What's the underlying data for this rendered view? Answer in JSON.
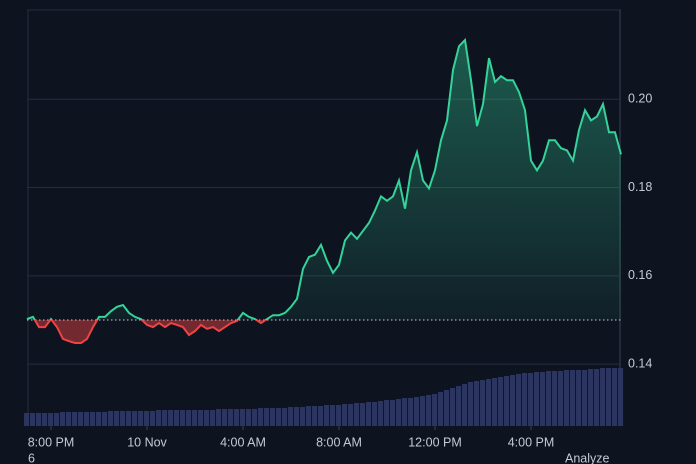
{
  "chart_data": {
    "type": "line",
    "x": [
      19.0,
      19.25,
      19.5,
      19.75,
      20.0,
      20.25,
      20.5,
      20.75,
      21.0,
      21.25,
      21.5,
      21.75,
      22.0,
      22.25,
      22.5,
      22.75,
      23.0,
      23.25,
      23.5,
      23.75,
      24.0,
      24.25,
      24.5,
      24.75,
      25.0,
      25.25,
      25.5,
      25.75,
      26.0,
      26.25,
      26.5,
      26.75,
      27.0,
      27.25,
      27.5,
      27.75,
      28.0,
      28.25,
      28.5,
      28.75,
      29.0,
      29.25,
      29.5,
      29.75,
      30.0,
      30.25,
      30.5,
      30.75,
      31.0,
      31.25,
      31.5,
      31.75,
      32.0,
      32.25,
      32.5,
      32.75,
      33.0,
      33.25,
      33.5,
      33.75,
      34.0,
      34.25,
      34.5,
      34.75,
      35.0,
      35.25,
      35.5,
      35.75,
      36.0,
      36.25,
      36.5,
      36.75,
      37.0,
      37.25,
      37.5,
      37.75,
      38.0,
      38.25,
      38.5,
      38.75,
      39.0,
      39.25,
      39.5,
      39.75,
      40.0,
      40.25,
      40.5,
      40.75,
      41.0,
      41.25,
      41.5,
      41.75,
      42.0,
      42.25,
      42.5,
      42.75,
      43.0,
      43.25,
      43.5,
      43.75
    ],
    "series": [
      {
        "color": "#34d399",
        "values": [
          0.1502,
          0.1507,
          0.1484,
          0.1484,
          0.1502,
          0.1484,
          0.1457,
          0.1452,
          0.1448,
          0.1448,
          0.1457,
          0.1484,
          0.1507,
          0.1507,
          0.152,
          0.153,
          0.1534,
          0.1516,
          0.1507,
          0.1502,
          0.1489,
          0.1484,
          0.1493,
          0.1484,
          0.1493,
          0.1489,
          0.1484,
          0.1466,
          0.1475,
          0.1489,
          0.148,
          0.1484,
          0.1475,
          0.1484,
          0.1493,
          0.1498,
          0.1516,
          0.1507,
          0.1502,
          0.1493,
          0.1502,
          0.1511,
          0.1511,
          0.1516,
          0.153,
          0.1548,
          0.1616,
          0.1643,
          0.1648,
          0.167,
          0.1634,
          0.1607,
          0.1625,
          0.168,
          0.1698,
          0.1684,
          0.1702,
          0.172,
          0.1748,
          0.178,
          0.177,
          0.178,
          0.1816,
          0.1752,
          0.1839,
          0.188,
          0.1816,
          0.1798,
          0.1839,
          0.1907,
          0.1952,
          0.2066,
          0.212,
          0.2134,
          0.2043,
          0.1939,
          0.1989,
          0.2093,
          0.2039,
          0.2052,
          0.2043,
          0.2043,
          0.2016,
          0.1975,
          0.1861,
          0.1839,
          0.1861,
          0.1907,
          0.1907,
          0.1889,
          0.1884,
          0.1861,
          0.193,
          0.1975,
          0.1952,
          0.1961,
          0.1989,
          0.1925,
          0.1925,
          0.1875
        ]
      }
    ],
    "down_color": "#ef4444",
    "baseline": 0.15,
    "volume": [
      13,
      13,
      13,
      13,
      13,
      13,
      14,
      14,
      14,
      14,
      14,
      14,
      14,
      14,
      15,
      15,
      15,
      15,
      15,
      15,
      15,
      15,
      16,
      16,
      16,
      16,
      16,
      16,
      16,
      16,
      16,
      16,
      17,
      17,
      17,
      17,
      17,
      17,
      17,
      18,
      18,
      18,
      18,
      18,
      19,
      19,
      19,
      20,
      20,
      20,
      21,
      21,
      21,
      22,
      22,
      23,
      23,
      24,
      24,
      25,
      26,
      26,
      27,
      28,
      28,
      29,
      30,
      31,
      32,
      34,
      36,
      38,
      40,
      42,
      44,
      45,
      46,
      47,
      48,
      49,
      50,
      51,
      52,
      53,
      53,
      54,
      54,
      55,
      55,
      55,
      56,
      56,
      56,
      56,
      57,
      57,
      58,
      58,
      58,
      58
    ],
    "volume_color": "#2b3560",
    "xlim": [
      19.0,
      43.75
    ],
    "xticks": [
      {
        "value": 20,
        "label": "8:00 PM"
      },
      {
        "value": 24,
        "label": "10 Nov"
      },
      {
        "value": 28,
        "label": "4:00 AM"
      },
      {
        "value": 32,
        "label": "8:00 AM"
      },
      {
        "value": 36,
        "label": "12:00 PM"
      },
      {
        "value": 40,
        "label": "4:00 PM"
      }
    ],
    "ylim": [
      0.126,
      0.2202
    ],
    "yticks": [
      0.14,
      0.16,
      0.18,
      {
        "value": 0.2,
        "label": "0.20"
      }
    ],
    "grid": true,
    "footer_left": "6",
    "footer_right": "Analyze"
  }
}
